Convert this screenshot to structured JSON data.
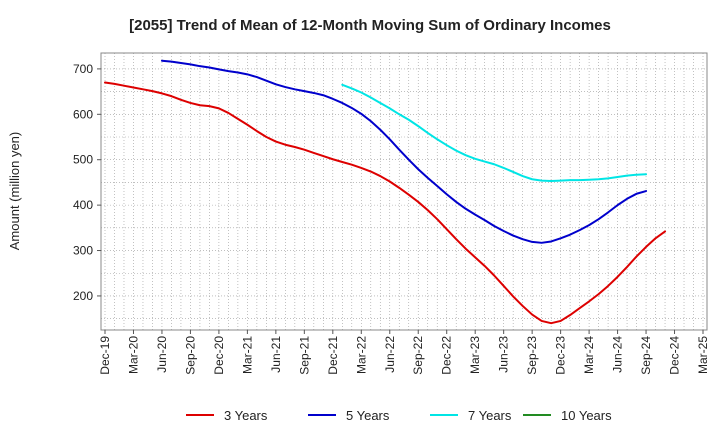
{
  "chart_data": {
    "type": "line",
    "title": "[2055]  Trend of Mean of 12-Month Moving Sum of Ordinary Incomes",
    "xlabel": "",
    "ylabel": "Amount (million yen)",
    "ylim": [
      125,
      735
    ],
    "yticks": [
      200,
      300,
      400,
      500,
      600,
      700
    ],
    "x_tick_labels": [
      "Dec-19",
      "Mar-20",
      "Jun-20",
      "Sep-20",
      "Dec-20",
      "Mar-21",
      "Jun-21",
      "Sep-21",
      "Dec-21",
      "Mar-22",
      "Jun-22",
      "Sep-22",
      "Dec-22",
      "Mar-23",
      "Jun-23",
      "Sep-23",
      "Dec-23",
      "Mar-24",
      "Jun-24",
      "Sep-24",
      "Dec-24",
      "Mar-25"
    ],
    "grid": true,
    "legend_position": "bottom",
    "series": [
      {
        "name": "3 Years",
        "color": "#dd0000",
        "points": [
          [
            0,
            670
          ],
          [
            1,
            667
          ],
          [
            2,
            663
          ],
          [
            3,
            659
          ],
          [
            4,
            655
          ],
          [
            5,
            651
          ],
          [
            6,
            646
          ],
          [
            7,
            640
          ],
          [
            8,
            632
          ],
          [
            9,
            625
          ],
          [
            10,
            620
          ],
          [
            11,
            618
          ],
          [
            12,
            613
          ],
          [
            13,
            603
          ],
          [
            14,
            590
          ],
          [
            15,
            577
          ],
          [
            16,
            563
          ],
          [
            17,
            550
          ],
          [
            18,
            540
          ],
          [
            19,
            533
          ],
          [
            20,
            528
          ],
          [
            21,
            522
          ],
          [
            22,
            515
          ],
          [
            23,
            508
          ],
          [
            24,
            501
          ],
          [
            25,
            495
          ],
          [
            26,
            489
          ],
          [
            27,
            482
          ],
          [
            28,
            474
          ],
          [
            29,
            464
          ],
          [
            30,
            452
          ],
          [
            31,
            438
          ],
          [
            32,
            423
          ],
          [
            33,
            407
          ],
          [
            34,
            389
          ],
          [
            35,
            369
          ],
          [
            36,
            347
          ],
          [
            37,
            325
          ],
          [
            38,
            304
          ],
          [
            39,
            285
          ],
          [
            40,
            266
          ],
          [
            41,
            245
          ],
          [
            42,
            222
          ],
          [
            43,
            199
          ],
          [
            44,
            178
          ],
          [
            45,
            159
          ],
          [
            46,
            145
          ],
          [
            47,
            140
          ],
          [
            48,
            145
          ],
          [
            49,
            158
          ],
          [
            50,
            173
          ],
          [
            51,
            188
          ],
          [
            52,
            204
          ],
          [
            53,
            222
          ],
          [
            54,
            242
          ],
          [
            55,
            264
          ],
          [
            56,
            287
          ],
          [
            57,
            308
          ],
          [
            58,
            327
          ],
          [
            59,
            342
          ]
        ]
      },
      {
        "name": "5 Years",
        "color": "#0000cc",
        "points": [
          [
            6,
            718
          ],
          [
            7,
            716
          ],
          [
            8,
            713
          ],
          [
            9,
            710
          ],
          [
            10,
            706
          ],
          [
            11,
            703
          ],
          [
            12,
            699
          ],
          [
            13,
            695
          ],
          [
            14,
            692
          ],
          [
            15,
            688
          ],
          [
            16,
            682
          ],
          [
            17,
            674
          ],
          [
            18,
            666
          ],
          [
            19,
            660
          ],
          [
            20,
            655
          ],
          [
            21,
            651
          ],
          [
            22,
            647
          ],
          [
            23,
            642
          ],
          [
            24,
            634
          ],
          [
            25,
            625
          ],
          [
            26,
            614
          ],
          [
            27,
            601
          ],
          [
            28,
            585
          ],
          [
            29,
            566
          ],
          [
            30,
            545
          ],
          [
            31,
            522
          ],
          [
            32,
            500
          ],
          [
            33,
            479
          ],
          [
            34,
            460
          ],
          [
            35,
            442
          ],
          [
            36,
            424
          ],
          [
            37,
            407
          ],
          [
            38,
            392
          ],
          [
            39,
            379
          ],
          [
            40,
            367
          ],
          [
            41,
            354
          ],
          [
            42,
            343
          ],
          [
            43,
            333
          ],
          [
            44,
            325
          ],
          [
            45,
            319
          ],
          [
            46,
            317
          ],
          [
            47,
            320
          ],
          [
            48,
            327
          ],
          [
            49,
            335
          ],
          [
            50,
            345
          ],
          [
            51,
            356
          ],
          [
            52,
            369
          ],
          [
            53,
            384
          ],
          [
            54,
            400
          ],
          [
            55,
            414
          ],
          [
            56,
            425
          ],
          [
            57,
            431
          ]
        ]
      },
      {
        "name": "7 Years",
        "color": "#00e5e5",
        "points": [
          [
            25,
            665
          ],
          [
            26,
            657
          ],
          [
            27,
            648
          ],
          [
            28,
            637
          ],
          [
            29,
            625
          ],
          [
            30,
            613
          ],
          [
            31,
            600
          ],
          [
            32,
            588
          ],
          [
            33,
            574
          ],
          [
            34,
            559
          ],
          [
            35,
            545
          ],
          [
            36,
            532
          ],
          [
            37,
            520
          ],
          [
            38,
            510
          ],
          [
            39,
            502
          ],
          [
            40,
            496
          ],
          [
            41,
            490
          ],
          [
            42,
            482
          ],
          [
            43,
            473
          ],
          [
            44,
            464
          ],
          [
            45,
            457
          ],
          [
            46,
            454
          ],
          [
            47,
            453
          ],
          [
            48,
            454
          ],
          [
            49,
            455
          ],
          [
            50,
            455
          ],
          [
            51,
            456
          ],
          [
            52,
            457
          ],
          [
            53,
            459
          ],
          [
            54,
            462
          ],
          [
            55,
            465
          ],
          [
            56,
            467
          ],
          [
            57,
            468
          ]
        ]
      },
      {
        "name": "10 Years",
        "color": "#228b22",
        "points": []
      }
    ]
  }
}
